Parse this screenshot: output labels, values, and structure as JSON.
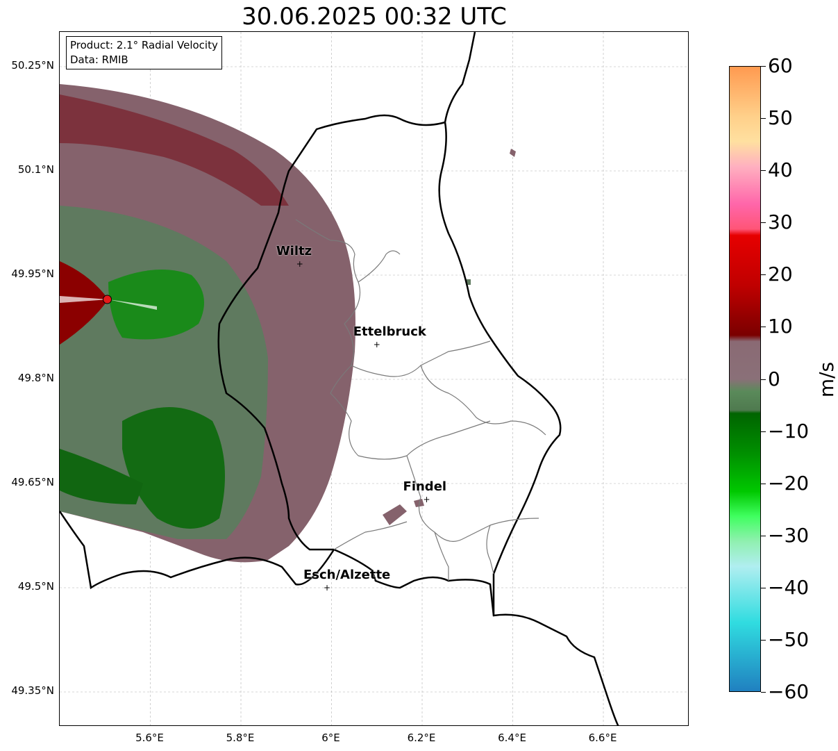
{
  "title": "30.06.2025 00:32 UTC",
  "info": {
    "product": "Product: 2.1° Radial Velocity",
    "data": "Data: RMIB"
  },
  "lat_ticks": [
    "50.25°N",
    "50.1°N",
    "49.95°N",
    "49.8°N",
    "49.65°N",
    "49.5°N",
    "49.35°N"
  ],
  "lon_ticks": [
    "5.6°E",
    "5.8°E",
    "6°E",
    "6.2°E",
    "6.4°E",
    "6.6°E"
  ],
  "cities": [
    {
      "name": "Wiltz",
      "lon": 5.93,
      "lat": 49.966
    },
    {
      "name": "Ettelbruck",
      "lon": 6.1,
      "lat": 49.85
    },
    {
      "name": "Findel",
      "lon": 6.21,
      "lat": 49.627
    },
    {
      "name": "Esch/Alzette",
      "lon": 5.99,
      "lat": 49.5
    }
  ],
  "radar": {
    "lon": 5.505,
    "lat": 49.915
  },
  "colorbar": {
    "unit": "m/s",
    "min": -60,
    "max": 60,
    "ticks": [
      "60",
      "50",
      "40",
      "30",
      "20",
      "10",
      "0",
      "−10",
      "−20",
      "−30",
      "−40",
      "−50",
      "−60"
    ],
    "colors": {
      "dark_green": "#006400",
      "green": "#00c800",
      "neutral_green": "#5a8a5a",
      "neutral_pink": "#8a6a74",
      "dark_red": "#7a0000",
      "red": "#e60000",
      "pink": "#ff66aa",
      "orange": "#ff9a50",
      "cyan": "#30dce0",
      "blue": "#2080c0"
    }
  },
  "map_extent": {
    "lon_min": 5.4,
    "lon_max": 6.79,
    "lat_min": 49.3,
    "lat_max": 50.3
  }
}
